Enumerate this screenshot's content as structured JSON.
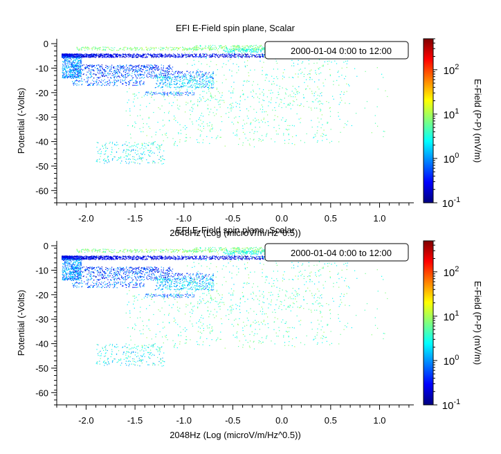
{
  "colors": {
    "background": "#ffffff",
    "axis": "#000000",
    "legend_border": "#000000",
    "colormap": [
      "#00007f",
      "#0000ff",
      "#007fff",
      "#00ffff",
      "#7fff7f",
      "#ffff00",
      "#ff7f00",
      "#ff0000",
      "#7f0000"
    ]
  },
  "chart_data": [
    {
      "type": "scatter",
      "title": "EFI  E-Field spin plane, Scalar",
      "xlabel": "2048Hz (Log (microV/m/Hz^0.5))",
      "ylabel": "Potential (-Volts)",
      "xlim": [
        -2.3,
        1.35
      ],
      "ylim": [
        -65,
        2
      ],
      "x_ticks": [
        -2.0,
        -1.5,
        -1.0,
        -0.5,
        0.0,
        0.5,
        1.0
      ],
      "x_tick_labels": [
        "-2.0",
        "-1.5",
        "-1.0",
        "-0.5",
        "0.0",
        "0.5",
        "1.0"
      ],
      "y_ticks": [
        0,
        -10,
        -20,
        -30,
        -40,
        -50,
        -60
      ],
      "y_tick_labels": [
        "0",
        "-10",
        "-20",
        "-30",
        "-40",
        "-50",
        "-60"
      ],
      "legend": {
        "text": "2000-01-04 0:00 to 12:00",
        "position": "top-right"
      },
      "colorbar": {
        "label": "E-Field (P-P) (mV/m)",
        "scale": "log",
        "range": [
          0.1,
          500
        ],
        "ticks": [
          0.1,
          1,
          10,
          100
        ],
        "tick_labels": [
          {
            "base": "10",
            "exp": "-1"
          },
          {
            "base": "10",
            "exp": "0"
          },
          {
            "base": "10",
            "exp": "1"
          },
          {
            "base": "10",
            "exp": "2"
          }
        ]
      },
      "point_clusters": [
        {
          "name": "dense band",
          "x": [
            -2.25,
            0.0
          ],
          "y": [
            -5.5,
            -4.0
          ],
          "n": 1300,
          "color_log10": [
            -0.9,
            -0.3
          ],
          "xdist": "declining"
        },
        {
          "name": "top green band",
          "x": [
            -2.1,
            -0.9
          ],
          "y": [
            -2.6,
            -1.2
          ],
          "n": 220,
          "color_log10": [
            0.6,
            1.1
          ],
          "xdist": "uniform"
        },
        {
          "name": "top green band right",
          "x": [
            -0.9,
            -0.1
          ],
          "y": [
            -2.5,
            -0.5
          ],
          "n": 250,
          "color_log10": [
            0.5,
            1.1
          ],
          "xdist": "uniform"
        },
        {
          "name": "top cyan band",
          "x": [
            -0.6,
            0.35
          ],
          "y": [
            -3.5,
            -1.8
          ],
          "n": 260,
          "color_log10": [
            0.2,
            0.7
          ],
          "xdist": "uniform"
        },
        {
          "name": "cyan cluster left",
          "x": [
            -2.25,
            -2.05
          ],
          "y": [
            -14,
            -5
          ],
          "n": 420,
          "color_log10": [
            -0.4,
            0.4
          ],
          "xdist": "uniform"
        },
        {
          "name": "band minus 10",
          "x": [
            -2.15,
            -1.1
          ],
          "y": [
            -11,
            -8.5
          ],
          "n": 340,
          "color_log10": [
            -0.8,
            0.2
          ],
          "xdist": "uniform"
        },
        {
          "name": "band minus 13",
          "x": [
            -2.1,
            -0.7
          ],
          "y": [
            -14,
            -11
          ],
          "n": 380,
          "color_log10": [
            -0.8,
            0.3
          ],
          "xdist": "uniform"
        },
        {
          "name": "cluster minus 16",
          "x": [
            -1.3,
            -0.7
          ],
          "y": [
            -18,
            -13
          ],
          "n": 300,
          "color_log10": [
            -0.2,
            0.6
          ],
          "xdist": "uniform"
        },
        {
          "name": "band minus 16",
          "x": [
            -2.15,
            -1.4
          ],
          "y": [
            -17,
            -14.5
          ],
          "n": 160,
          "color_log10": [
            -0.6,
            0.3
          ],
          "xdist": "uniform"
        },
        {
          "name": "band minus 20",
          "x": [
            -1.4,
            -0.9
          ],
          "y": [
            -21,
            -19.5
          ],
          "n": 90,
          "color_log10": [
            -0.5,
            0.3
          ],
          "xdist": "uniform"
        },
        {
          "name": "sparse upper right",
          "x": [
            -1.0,
            0.7
          ],
          "y": [
            -25,
            -3
          ],
          "n": 300,
          "color_log10": [
            0.2,
            1.0
          ],
          "xdist": "uniform"
        },
        {
          "name": "diffuse middle",
          "x": [
            -1.6,
            0.5
          ],
          "y": [
            -42,
            -18
          ],
          "n": 500,
          "color_log10": [
            0.3,
            1.0
          ],
          "xdist": "uniform"
        },
        {
          "name": "lower left",
          "x": [
            -1.9,
            -1.2
          ],
          "y": [
            -49,
            -40
          ],
          "n": 220,
          "color_log10": [
            0.0,
            0.8
          ],
          "xdist": "uniform"
        },
        {
          "name": "far right sparse",
          "x": [
            0.3,
            1.1
          ],
          "y": [
            -40,
            -5
          ],
          "n": 60,
          "color_log10": [
            0.3,
            0.9
          ],
          "xdist": "uniform"
        }
      ]
    },
    {
      "type": "scatter",
      "title": "EFI  E-Field spin plane, Scalar",
      "xlabel": "2048Hz (Log (microV/m/Hz^0.5))",
      "ylabel": "Potential (-Volts)",
      "xlim": [
        -2.3,
        1.35
      ],
      "ylim": [
        -65,
        2
      ],
      "x_ticks": [
        -2.0,
        -1.5,
        -1.0,
        -0.5,
        0.0,
        0.5,
        1.0
      ],
      "x_tick_labels": [
        "-2.0",
        "-1.5",
        "-1.0",
        "-0.5",
        "0.0",
        "0.5",
        "1.0"
      ],
      "y_ticks": [
        0,
        -10,
        -20,
        -30,
        -40,
        -50,
        -60
      ],
      "y_tick_labels": [
        "0",
        "-10",
        "-20",
        "-30",
        "-40",
        "-50",
        "-60"
      ],
      "legend": {
        "text": "2000-01-04 0:00 to 12:00",
        "position": "top-right"
      },
      "colorbar": {
        "label": "E-Field (P-P) (mV/m)",
        "scale": "log",
        "range": [
          0.1,
          500
        ],
        "ticks": [
          0.1,
          1,
          10,
          100
        ],
        "tick_labels": [
          {
            "base": "10",
            "exp": "-1"
          },
          {
            "base": "10",
            "exp": "0"
          },
          {
            "base": "10",
            "exp": "1"
          },
          {
            "base": "10",
            "exp": "2"
          }
        ]
      },
      "point_clusters": [
        {
          "name": "dense band",
          "x": [
            -2.25,
            0.0
          ],
          "y": [
            -5.5,
            -4.0
          ],
          "n": 1300,
          "color_log10": [
            -0.9,
            -0.3
          ],
          "xdist": "declining"
        },
        {
          "name": "top green band",
          "x": [
            -2.1,
            -0.9
          ],
          "y": [
            -2.6,
            -1.2
          ],
          "n": 220,
          "color_log10": [
            0.6,
            1.1
          ],
          "xdist": "uniform"
        },
        {
          "name": "top green band right",
          "x": [
            -0.9,
            -0.1
          ],
          "y": [
            -2.5,
            -0.5
          ],
          "n": 250,
          "color_log10": [
            0.5,
            1.1
          ],
          "xdist": "uniform"
        },
        {
          "name": "top cyan band",
          "x": [
            -0.6,
            0.35
          ],
          "y": [
            -3.5,
            -1.8
          ],
          "n": 260,
          "color_log10": [
            0.2,
            0.7
          ],
          "xdist": "uniform"
        },
        {
          "name": "cyan cluster left",
          "x": [
            -2.25,
            -2.05
          ],
          "y": [
            -14,
            -5
          ],
          "n": 420,
          "color_log10": [
            -0.4,
            0.4
          ],
          "xdist": "uniform"
        },
        {
          "name": "band minus 10",
          "x": [
            -2.15,
            -1.1
          ],
          "y": [
            -11,
            -8.5
          ],
          "n": 340,
          "color_log10": [
            -0.8,
            0.2
          ],
          "xdist": "uniform"
        },
        {
          "name": "band minus 13",
          "x": [
            -2.1,
            -0.7
          ],
          "y": [
            -14,
            -11
          ],
          "n": 380,
          "color_log10": [
            -0.8,
            0.3
          ],
          "xdist": "uniform"
        },
        {
          "name": "cluster minus 16",
          "x": [
            -1.3,
            -0.7
          ],
          "y": [
            -18,
            -13
          ],
          "n": 300,
          "color_log10": [
            -0.2,
            0.6
          ],
          "xdist": "uniform"
        },
        {
          "name": "band minus 16",
          "x": [
            -2.15,
            -1.4
          ],
          "y": [
            -17,
            -14.5
          ],
          "n": 160,
          "color_log10": [
            -0.6,
            0.3
          ],
          "xdist": "uniform"
        },
        {
          "name": "band minus 20",
          "x": [
            -1.4,
            -0.9
          ],
          "y": [
            -21,
            -19.5
          ],
          "n": 90,
          "color_log10": [
            -0.5,
            0.3
          ],
          "xdist": "uniform"
        },
        {
          "name": "sparse upper right",
          "x": [
            -1.0,
            0.7
          ],
          "y": [
            -25,
            -3
          ],
          "n": 300,
          "color_log10": [
            0.2,
            1.0
          ],
          "xdist": "uniform"
        },
        {
          "name": "diffuse middle",
          "x": [
            -1.6,
            0.5
          ],
          "y": [
            -42,
            -18
          ],
          "n": 500,
          "color_log10": [
            0.3,
            1.0
          ],
          "xdist": "uniform"
        },
        {
          "name": "lower left",
          "x": [
            -1.9,
            -1.2
          ],
          "y": [
            -49,
            -40
          ],
          "n": 220,
          "color_log10": [
            0.0,
            0.8
          ],
          "xdist": "uniform"
        },
        {
          "name": "far right sparse",
          "x": [
            0.3,
            1.1
          ],
          "y": [
            -40,
            -5
          ],
          "n": 60,
          "color_log10": [
            0.3,
            0.9
          ],
          "xdist": "uniform"
        }
      ]
    }
  ]
}
